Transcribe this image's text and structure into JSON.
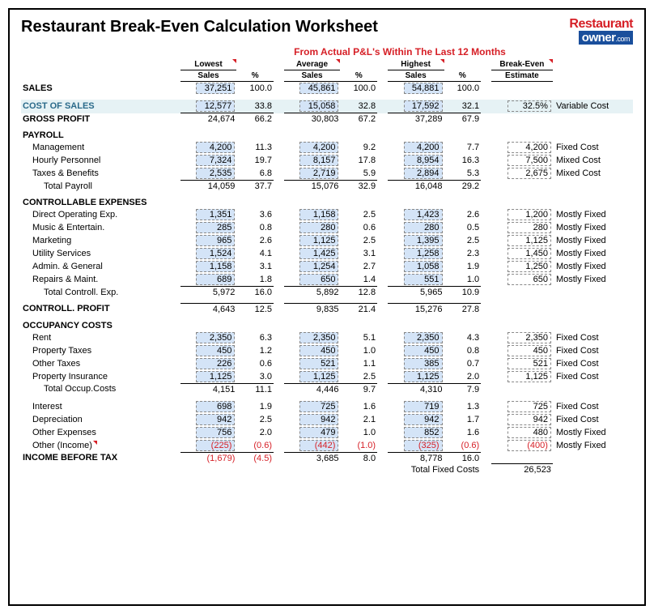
{
  "title": "Restaurant Break-Even Calculation Worksheet",
  "logo": {
    "top": "Restaurant",
    "bottom": "owner",
    "suffix": ".com"
  },
  "subtitle": "From Actual P&L's Within The Last 12 Months",
  "headers": {
    "lowest": "Lowest",
    "average": "Average",
    "highest": "Highest",
    "sales": "Sales",
    "pct": "%",
    "breakeven": "Break-Even",
    "estimate": "Estimate"
  },
  "sales": {
    "label": "SALES",
    "low": "37,251",
    "lowp": "100.0",
    "avg": "45,861",
    "avgp": "100.0",
    "high": "54,881",
    "highp": "100.0"
  },
  "cost_of_sales": {
    "label": "COST OF SALES",
    "low": "12,577",
    "lowp": "33.8",
    "avg": "15,058",
    "avgp": "32.8",
    "high": "17,592",
    "highp": "32.1",
    "be": "32.5%",
    "type": "Variable Cost"
  },
  "gross_profit": {
    "label": "GROSS PROFIT",
    "low": "24,674",
    "lowp": "66.2",
    "avg": "30,803",
    "avgp": "67.2",
    "high": "37,289",
    "highp": "67.9"
  },
  "payroll": {
    "label": "PAYROLL",
    "rows": [
      {
        "label": "Management",
        "low": "4,200",
        "lowp": "11.3",
        "avg": "4,200",
        "avgp": "9.2",
        "high": "4,200",
        "highp": "7.7",
        "be": "4,200",
        "type": "Fixed Cost"
      },
      {
        "label": "Hourly Personnel",
        "low": "7,324",
        "lowp": "19.7",
        "avg": "8,157",
        "avgp": "17.8",
        "high": "8,954",
        "highp": "16.3",
        "be": "7,500",
        "type": "Mixed Cost"
      },
      {
        "label": "Taxes & Benefits",
        "low": "2,535",
        "lowp": "6.8",
        "avg": "2,719",
        "avgp": "5.9",
        "high": "2,894",
        "highp": "5.3",
        "be": "2,675",
        "type": "Mixed Cost"
      }
    ],
    "total": {
      "label": "Total Payroll",
      "low": "14,059",
      "lowp": "37.7",
      "avg": "15,076",
      "avgp": "32.9",
      "high": "16,048",
      "highp": "29.2"
    }
  },
  "controllable": {
    "label": "CONTROLLABLE EXPENSES",
    "rows": [
      {
        "label": "Direct Operating Exp.",
        "low": "1,351",
        "lowp": "3.6",
        "avg": "1,158",
        "avgp": "2.5",
        "high": "1,423",
        "highp": "2.6",
        "be": "1,200",
        "type": "Mostly Fixed"
      },
      {
        "label": "Music & Entertain.",
        "low": "285",
        "lowp": "0.8",
        "avg": "280",
        "avgp": "0.6",
        "high": "280",
        "highp": "0.5",
        "be": "280",
        "type": "Mostly Fixed"
      },
      {
        "label": "Marketing",
        "low": "965",
        "lowp": "2.6",
        "avg": "1,125",
        "avgp": "2.5",
        "high": "1,395",
        "highp": "2.5",
        "be": "1,125",
        "type": "Mostly Fixed"
      },
      {
        "label": "Utility Services",
        "low": "1,524",
        "lowp": "4.1",
        "avg": "1,425",
        "avgp": "3.1",
        "high": "1,258",
        "highp": "2.3",
        "be": "1,450",
        "type": "Mostly Fixed"
      },
      {
        "label": "Admin. & General",
        "low": "1,158",
        "lowp": "3.1",
        "avg": "1,254",
        "avgp": "2.7",
        "high": "1,058",
        "highp": "1.9",
        "be": "1,250",
        "type": "Mostly Fixed"
      },
      {
        "label": "Repairs & Maint.",
        "low": "689",
        "lowp": "1.8",
        "avg": "650",
        "avgp": "1.4",
        "high": "551",
        "highp": "1.0",
        "be": "650",
        "type": "Mostly Fixed"
      }
    ],
    "total": {
      "label": "Total Controll. Exp.",
      "low": "5,972",
      "lowp": "16.0",
      "avg": "5,892",
      "avgp": "12.8",
      "high": "5,965",
      "highp": "10.9"
    }
  },
  "controll_profit": {
    "label": "CONTROLL. PROFIT",
    "low": "4,643",
    "lowp": "12.5",
    "avg": "9,835",
    "avgp": "21.4",
    "high": "15,276",
    "highp": "27.8"
  },
  "occupancy": {
    "label": "OCCUPANCY COSTS",
    "rows": [
      {
        "label": "Rent",
        "low": "2,350",
        "lowp": "6.3",
        "avg": "2,350",
        "avgp": "5.1",
        "high": "2,350",
        "highp": "4.3",
        "be": "2,350",
        "type": "Fixed Cost"
      },
      {
        "label": "Property Taxes",
        "low": "450",
        "lowp": "1.2",
        "avg": "450",
        "avgp": "1.0",
        "high": "450",
        "highp": "0.8",
        "be": "450",
        "type": "Fixed Cost"
      },
      {
        "label": "Other Taxes",
        "low": "226",
        "lowp": "0.6",
        "avg": "521",
        "avgp": "1.1",
        "high": "385",
        "highp": "0.7",
        "be": "521",
        "type": "Fixed Cost"
      },
      {
        "label": "Property Insurance",
        "low": "1,125",
        "lowp": "3.0",
        "avg": "1,125",
        "avgp": "2.5",
        "high": "1,125",
        "highp": "2.0",
        "be": "1,125",
        "type": "Fixed Cost"
      }
    ],
    "total": {
      "label": "Total Occup.Costs",
      "low": "4,151",
      "lowp": "11.1",
      "avg": "4,446",
      "avgp": "9.7",
      "high": "4,310",
      "highp": "7.9"
    }
  },
  "other": {
    "rows": [
      {
        "label": "Interest",
        "low": "698",
        "lowp": "1.9",
        "avg": "725",
        "avgp": "1.6",
        "high": "719",
        "highp": "1.3",
        "be": "725",
        "type": "Fixed Cost"
      },
      {
        "label": "Depreciation",
        "low": "942",
        "lowp": "2.5",
        "avg": "942",
        "avgp": "2.1",
        "high": "942",
        "highp": "1.7",
        "be": "942",
        "type": "Fixed Cost"
      },
      {
        "label": "Other Expenses",
        "low": "756",
        "lowp": "2.0",
        "avg": "479",
        "avgp": "1.0",
        "high": "852",
        "highp": "1.6",
        "be": "480",
        "type": "Mostly Fixed"
      },
      {
        "label": "Other (Income)",
        "low": "(225)",
        "lowp": "(0.6)",
        "avg": "(442)",
        "avgp": "(1.0)",
        "high": "(325)",
        "highp": "(0.6)",
        "be": "(400)",
        "type": "Mostly Fixed",
        "neg": true,
        "corner": true
      }
    ]
  },
  "income_before_tax": {
    "label": "INCOME BEFORE TAX",
    "low": "(1,679)",
    "lowp": "(4.5)",
    "lown": true,
    "avg": "3,685",
    "avgp": "8.0",
    "high": "8,778",
    "highp": "16.0"
  },
  "total_fixed": {
    "label": "Total Fixed Costs",
    "value": "26,523"
  }
}
